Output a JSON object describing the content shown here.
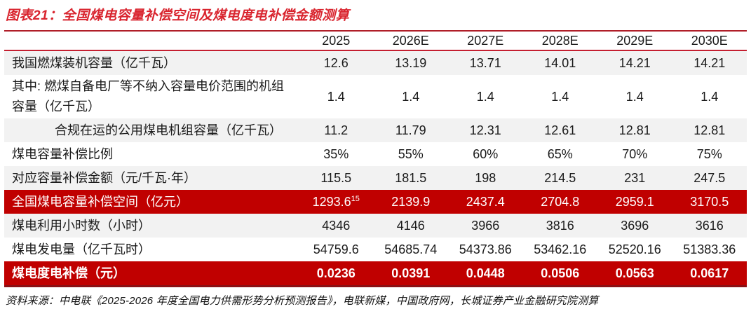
{
  "page": {
    "title": "图表21：全国煤电容量补偿空间及煤电度电补偿金额测算",
    "source_note": "资料来源：中电联《2025-2026 年度全国电力供需形势分析预测报告》，电联新媒，中国政府网，长城证券产业金融研究院测算"
  },
  "colors": {
    "title_red": "#D9242E",
    "highlight_row_red": "#C00000",
    "row_shade_gray": "#F2F2F2",
    "table_top_border": "#B01E28",
    "header_underline_red": "#C51F30",
    "table_bottom_border": "#8B1014"
  },
  "table": {
    "columns": [
      "",
      "2025",
      "2026E",
      "2027E",
      "2028E",
      "2029E",
      "2030E"
    ],
    "rows": [
      {
        "label": "我国燃煤装机容量（亿千瓦）",
        "bg": "gray",
        "values": [
          "12.6",
          "13.19",
          "13.71",
          "14.01",
          "14.21",
          "14.21"
        ]
      },
      {
        "label": "其中: 燃煤自备电厂等不纳入容量电价范围的机组容量（亿千瓦）",
        "bg": "white",
        "values": [
          "1.4",
          "1.4",
          "1.4",
          "1.4",
          "1.4",
          "1.4"
        ]
      },
      {
        "label": "合规在运的公用煤电机组容量（亿千瓦）",
        "bg": "gray",
        "indent": true,
        "values": [
          "11.2",
          "11.79",
          "12.31",
          "12.61",
          "12.81",
          "12.81"
        ]
      },
      {
        "label": "煤电容量补偿比例",
        "bg": "white",
        "values": [
          "35%",
          "55%",
          "60%",
          "65%",
          "70%",
          "75%"
        ]
      },
      {
        "label": "对应容量补偿金额（元/千瓦·年）",
        "bg": "gray",
        "values": [
          "115.5",
          "181.5",
          "198",
          "214.5",
          "231",
          "247.5"
        ]
      },
      {
        "label": "全国煤电容量补偿空间（亿元）",
        "bg": "red",
        "superscript": {
          "col": 0,
          "text": "15"
        },
        "values": [
          "1293.6",
          "2139.9",
          "2437.4",
          "2704.8",
          "2959.1",
          "3170.5"
        ]
      },
      {
        "label": "煤电利用小时数（小时）",
        "bg": "gray",
        "values": [
          "4346",
          "4146",
          "3966",
          "3816",
          "3696",
          "3616"
        ]
      },
      {
        "label": "煤电发电量（亿千瓦时）",
        "bg": "white",
        "values": [
          "54759.6",
          "54685.74",
          "54373.86",
          "53462.16",
          "52520.16",
          "51383.36"
        ]
      },
      {
        "label": "煤电度电补偿（元）",
        "bg": "red",
        "bold": true,
        "values": [
          "0.0236",
          "0.0391",
          "0.0448",
          "0.0506",
          "0.0563",
          "0.0617"
        ]
      }
    ]
  }
}
